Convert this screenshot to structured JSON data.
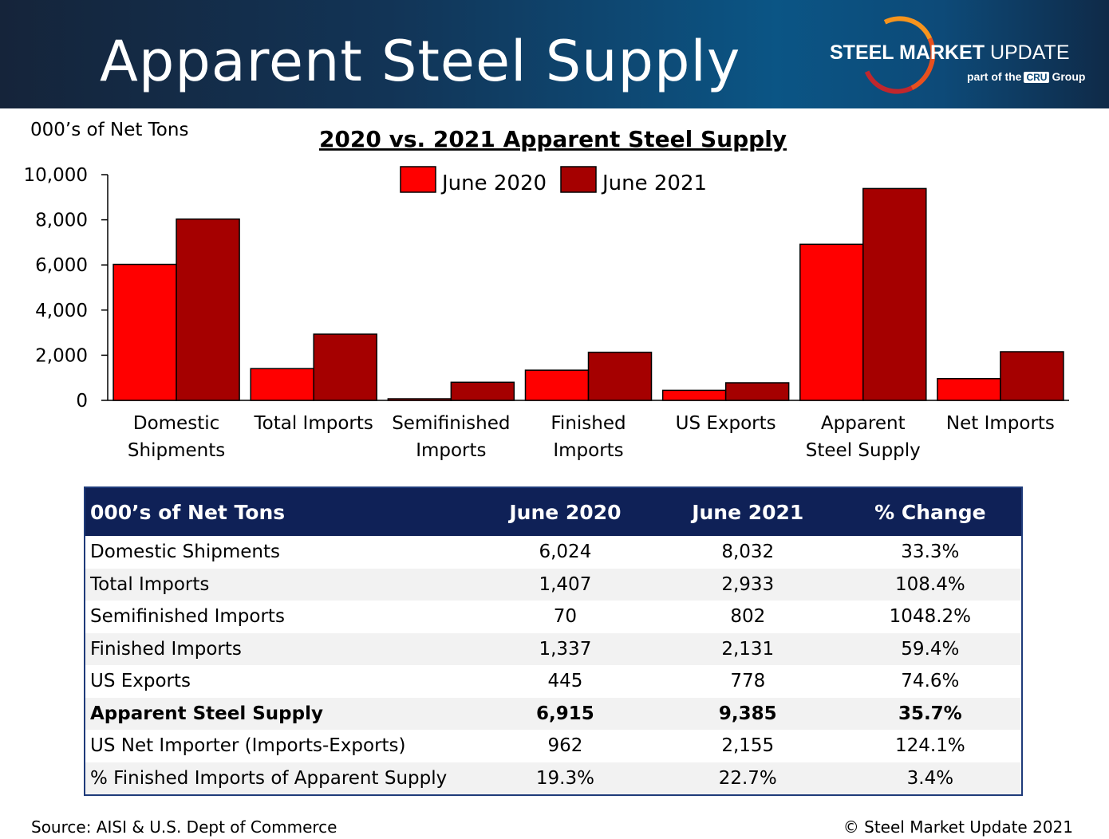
{
  "header": {
    "title": "Apparent Steel Supply",
    "logo_main_bold": "STEEL MARKET",
    "logo_main_light": "UPDATE",
    "logo_sub_pre": "part of the",
    "logo_sub_badge": "CRU",
    "logo_sub_post": "Group"
  },
  "chart_data": {
    "type": "bar",
    "title": "2020 vs. 2021 Apparent Steel Supply",
    "ylabel": "000’s of Net Tons",
    "ylim": [
      0,
      10000
    ],
    "yticks": [
      "0",
      "2,000",
      "4,000",
      "6,000",
      "8,000",
      "10,000"
    ],
    "categories": [
      [
        "Domestic",
        "Shipments"
      ],
      [
        "Total Imports"
      ],
      [
        "Semifinished",
        "Imports"
      ],
      [
        "Finished",
        "Imports"
      ],
      [
        "US Exports"
      ],
      [
        "Apparent",
        "Steel Supply"
      ],
      [
        "Net Imports"
      ]
    ],
    "series": [
      {
        "name": "June 2020",
        "color": "#ff0000",
        "values": [
          6024,
          1407,
          70,
          1337,
          445,
          6915,
          962
        ]
      },
      {
        "name": "June 2021",
        "color": "#a50000",
        "values": [
          8032,
          2933,
          802,
          2131,
          778,
          9385,
          2155
        ]
      }
    ],
    "legend": "top-center",
    "grid": false
  },
  "table": {
    "headers": [
      "000’s of Net Tons",
      "June 2020",
      "June 2021",
      "% Change"
    ],
    "rows": [
      {
        "cells": [
          "Domestic Shipments",
          "6,024",
          "8,032",
          "33.3%"
        ],
        "bold": false
      },
      {
        "cells": [
          "Total Imports",
          "1,407",
          "2,933",
          "108.4%"
        ],
        "bold": false
      },
      {
        "cells": [
          "Semifinished Imports",
          "70",
          "802",
          "1048.2%"
        ],
        "bold": false
      },
      {
        "cells": [
          "Finished Imports",
          "1,337",
          "2,131",
          "59.4%"
        ],
        "bold": false
      },
      {
        "cells": [
          "US Exports",
          "445",
          "778",
          "74.6%"
        ],
        "bold": false
      },
      {
        "cells": [
          "Apparent Steel Supply",
          "6,915",
          "9,385",
          "35.7%"
        ],
        "bold": true
      },
      {
        "cells": [
          "US Net Importer (Imports-Exports)",
          "962",
          "2,155",
          "124.1%"
        ],
        "bold": false
      },
      {
        "cells": [
          "% Finished Imports of Apparent Supply",
          "19.3%",
          "22.7%",
          "3.4%"
        ],
        "bold": false
      }
    ]
  },
  "footer": {
    "source": "Source:  AISI & U.S. Dept of Commerce",
    "copyright": "©    Steel Market Update 2021"
  }
}
